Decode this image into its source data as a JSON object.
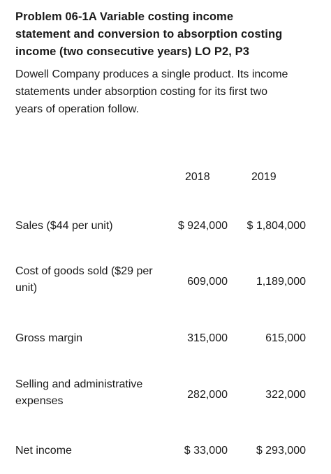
{
  "heading_lines": [
    "Problem 06-1A Variable costing income",
    "statement and conversion to absorption costing",
    "income (two consecutive years) LO P2, P3"
  ],
  "intro_lines": [
    "Dowell Company produces a single product. Its income",
    "statements under absorption costing for its first two",
    "years of operation follow."
  ],
  "years": [
    "2018",
    "2019"
  ],
  "rows": [
    {
      "label_lines": [
        "Sales ($44 per unit)"
      ],
      "y2018": "$ 924,000",
      "y2019": "$ 1,804,000"
    },
    {
      "label_lines": [
        "Cost of goods sold ($29 per",
        "unit)"
      ],
      "y2018": "609,000",
      "y2019": "1,189,000"
    },
    {
      "label_lines": [
        "Gross margin"
      ],
      "y2018": "315,000",
      "y2019": "615,000"
    },
    {
      "label_lines": [
        "Selling and administrative",
        "expenses"
      ],
      "y2018": "282,000",
      "y2019": "322,000"
    },
    {
      "label_lines": [
        "Net income"
      ],
      "y2018": "$ 33,000",
      "y2019": "$ 293,000"
    }
  ]
}
